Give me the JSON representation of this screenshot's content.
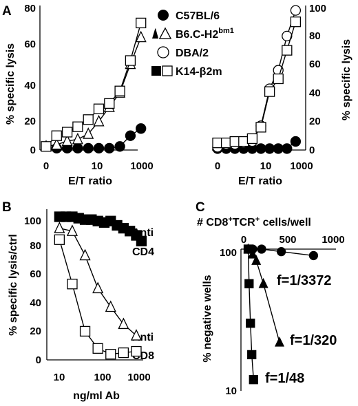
{
  "chart_data": [
    {
      "panel": "A",
      "type": "line",
      "xlabel": "E/T ratio",
      "ylabel": "% specific lysis",
      "x_ticks": [
        "0",
        "10",
        "1000"
      ],
      "y_ticks": [
        "0",
        "20",
        "40",
        "60",
        "80"
      ],
      "ylim": [
        0,
        80
      ],
      "legend": [
        {
          "label": "C57BL/6",
          "marker": "circle-filled"
        },
        {
          "label": "B6.C-H2",
          "sup": "bm1",
          "marker": "triangle-pair"
        },
        {
          "label": "DBA/2",
          "marker": "circle-open"
        },
        {
          "label": "K14-β2m",
          "marker": "square-pair"
        }
      ],
      "series": [
        {
          "name": "C57BL/6",
          "marker": "circle-filled",
          "x": [
            0.3,
            0.6,
            0.9,
            1.2,
            1.5,
            1.8,
            2.1,
            2.4,
            2.7
          ],
          "y": [
            1,
            1,
            1,
            1,
            1,
            1,
            2,
            8,
            12
          ]
        },
        {
          "name": "B6.C-H2bm1",
          "marker": "triangle-open",
          "x": [
            0.0,
            0.3,
            0.6,
            0.9,
            1.2,
            1.5,
            1.8,
            2.1,
            2.4,
            2.7
          ],
          "y": [
            2,
            3,
            5,
            6,
            9,
            16,
            24,
            32,
            48,
            63
          ]
        },
        {
          "name": "K14-β2m",
          "marker": "square-open",
          "x": [
            0.0,
            0.3,
            0.6,
            0.9,
            1.2,
            1.5,
            1.8,
            2.1,
            2.4,
            2.7
          ],
          "y": [
            2,
            8,
            10,
            13,
            17,
            23,
            26,
            33,
            50,
            71
          ]
        }
      ]
    },
    {
      "panel": "A-right",
      "type": "line",
      "xlabel": "E/T ratio",
      "ylabel": "% specific lysis",
      "x_ticks": [
        "0",
        "10",
        "1000"
      ],
      "y_ticks": [
        "0",
        "20",
        "40",
        "60",
        "80",
        "100"
      ],
      "ylim": [
        0,
        100
      ],
      "series": [
        {
          "name": "C57BL/6",
          "marker": "circle-filled",
          "x": [
            0.0,
            0.3,
            0.6,
            0.9,
            1.2,
            1.5,
            1.8,
            2.1,
            2.4,
            2.7
          ],
          "y": [
            1,
            1,
            1,
            1,
            1,
            1,
            1,
            1,
            1,
            6
          ]
        },
        {
          "name": "DBA/2",
          "marker": "circle-open",
          "x": [
            0.0,
            0.3,
            0.6,
            0.9,
            1.2,
            1.5,
            1.8,
            2.1,
            2.4,
            2.7
          ],
          "y": [
            2,
            4,
            4,
            5,
            6,
            17,
            43,
            56,
            80,
            98
          ]
        },
        {
          "name": "K14-β2m",
          "marker": "square-open",
          "x": [
            0.0,
            0.3,
            0.6,
            0.9,
            1.2,
            1.5,
            1.8,
            2.1,
            2.4,
            2.7
          ],
          "y": [
            5,
            5,
            6,
            6,
            8,
            16,
            41,
            50,
            70,
            90
          ]
        }
      ]
    },
    {
      "panel": "B",
      "type": "line",
      "xlabel": "ng/ml Ab",
      "ylabel": "% specific lysis/ctrl",
      "x_ticks": [
        "10",
        "100",
        "1000"
      ],
      "y_ticks": [
        "0",
        "20",
        "40",
        "60",
        "80",
        "100"
      ],
      "ylim": [
        0,
        100
      ],
      "annotations": [
        {
          "text": "Anti",
          "series": "Anti CD4"
        },
        {
          "text": "CD4",
          "series": "Anti CD4"
        },
        {
          "text": "Anti",
          "series": "Anti CD8"
        },
        {
          "text": "CD8",
          "series": "Anti CD8"
        }
      ],
      "series": [
        {
          "name": "Anti CD4",
          "marker": "square-filled",
          "x": [
            0.78,
            0.93,
            1.08,
            1.23,
            1.38,
            1.53,
            1.68,
            1.83,
            1.98,
            2.13,
            2.28,
            2.43,
            2.58,
            2.7
          ],
          "y": [
            100,
            100,
            100,
            99,
            98,
            98,
            97,
            96,
            97,
            94,
            92,
            90,
            87,
            83
          ]
        },
        {
          "name": "Anti CD8 (triangles)",
          "marker": "triangle-open",
          "x": [
            0.78,
            1.08,
            1.38,
            1.68,
            1.98,
            2.28,
            2.58
          ],
          "y": [
            92,
            90,
            73,
            50,
            37,
            25,
            17
          ]
        },
        {
          "name": "Anti CD8 (squares)",
          "marker": "square-open",
          "x": [
            0.78,
            1.08,
            1.38,
            1.68,
            1.98,
            2.28,
            2.58
          ],
          "y": [
            84,
            53,
            20,
            8,
            4,
            5,
            6
          ]
        }
      ]
    },
    {
      "panel": "C",
      "type": "scatter",
      "xlabel": "# CD8+TCR+ cells/well",
      "ylabel": "% negative wells",
      "x_ticks": [
        "0",
        "500",
        "1000"
      ],
      "y_ticks": [
        "10",
        "100"
      ],
      "xlim": [
        0,
        1000
      ],
      "ylim": [
        10,
        100
      ],
      "y_scale": "log",
      "annotations": [
        {
          "text": "f=1/3372",
          "series": "circles"
        },
        {
          "text": "f=1/320",
          "series": "triangles"
        },
        {
          "text": "f=1/48",
          "series": "squares"
        }
      ],
      "series": [
        {
          "name": "circles",
          "marker": "circle-filled",
          "x": [
            50,
            100,
            200,
            420,
            780
          ],
          "y": [
            100,
            100,
            100,
            96,
            90
          ]
        },
        {
          "name": "triangles",
          "marker": "triangle-filled",
          "x": [
            50,
            100,
            140,
            220,
            400
          ],
          "y": [
            100,
            92,
            83,
            57,
            22
          ]
        },
        {
          "name": "squares",
          "marker": "square-filled",
          "x": [
            50,
            60,
            75,
            90,
            110
          ],
          "y": [
            100,
            57,
            30,
            18,
            12
          ]
        }
      ]
    }
  ],
  "panel_labels": {
    "a": "A",
    "b": "B",
    "c": "C"
  },
  "legend": {
    "c57": "C57BL/6",
    "b6c": "B6.C-H2",
    "b6c_sup": "bm1",
    "dba": "DBA/2",
    "k14": "K14-β2m"
  },
  "panel_a": {
    "ylabel": "% specific lysis",
    "xlabel": "E/T ratio",
    "y_ticks": [
      "0",
      "20",
      "40",
      "60",
      "80"
    ],
    "x_ticks": [
      "0",
      "10",
      "1000"
    ]
  },
  "panel_a_right": {
    "ylabel": "% specific lysis",
    "xlabel": "E/T ratio",
    "y_ticks": [
      "0",
      "20",
      "40",
      "60",
      "80",
      "100"
    ],
    "x_ticks": [
      "0",
      "10",
      "1000"
    ]
  },
  "panel_b": {
    "ylabel": "% specific lysis/ctrl",
    "xlabel": "ng/ml Ab",
    "y_ticks": [
      "0",
      "20",
      "40",
      "60",
      "80",
      "100"
    ],
    "x_ticks": [
      "10",
      "100",
      "1000"
    ],
    "anno_cd4_1": "Anti",
    "anno_cd4_2": "CD4",
    "anno_cd8_1": "Anti",
    "anno_cd8_2": "CD8"
  },
  "panel_c": {
    "xlabel_prefix": "# CD8",
    "xlabel_sup1": "+",
    "xlabel_mid": "TCR",
    "xlabel_sup2": "+",
    "xlabel_suffix": " cells/well",
    "ylabel": "% negative wells",
    "x_ticks": [
      "0",
      "500",
      "1000"
    ],
    "y_ticks": [
      "10",
      "100"
    ],
    "f1": "f=1/3372",
    "f2": "f=1/320",
    "f3": "f=1/48"
  }
}
